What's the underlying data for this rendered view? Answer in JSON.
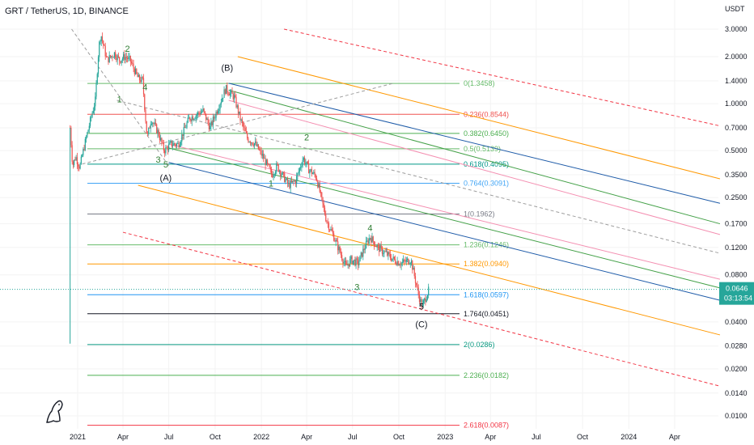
{
  "header": {
    "symbol": "GRT / TetherUS, 1D, BINANCE"
  },
  "chart_data": {
    "type": "candlestick",
    "title": "GRT / TetherUS, 1D, BINANCE",
    "yscale": "log",
    "ylabel": "USDT",
    "y_ticks": [
      "3.0000",
      "2.0000",
      "1.4000",
      "1.0000",
      "0.7000",
      "0.5000",
      "0.3500",
      "0.2500",
      "0.1700",
      "0.1200",
      "0.0800",
      "0.0400",
      "0.0280",
      "0.0200",
      "0.0140",
      "0.0100"
    ],
    "x_ticks": [
      "2021",
      "Apr",
      "Jul",
      "Oct",
      "2022",
      "Apr",
      "Jul",
      "Oct",
      "2023",
      "Apr",
      "Jul",
      "Oct",
      "2024",
      "Apr"
    ],
    "current_price": {
      "value": "0.0646",
      "countdown": "03:13:54",
      "color": "#26a69a"
    },
    "price_path": [
      [
        "2020-12-17",
        0.7
      ],
      [
        "2020-12-22",
        0.4
      ],
      [
        "2020-12-28",
        0.46
      ],
      [
        "2021-01-05",
        0.39
      ],
      [
        "2021-01-15",
        0.55
      ],
      [
        "2021-01-25",
        0.75
      ],
      [
        "2021-02-05",
        1.05
      ],
      [
        "2021-02-12",
        2.3
      ],
      [
        "2021-02-16",
        2.8
      ],
      [
        "2021-02-28",
        1.9
      ],
      [
        "2021-03-15",
        2.1
      ],
      [
        "2021-03-25",
        1.9
      ],
      [
        "2021-04-05",
        2.0
      ],
      [
        "2021-04-15",
        1.9
      ],
      [
        "2021-05-01",
        1.45
      ],
      [
        "2021-05-10",
        1.4
      ],
      [
        "2021-05-19",
        0.6
      ],
      [
        "2021-05-27",
        0.8
      ],
      [
        "2021-06-10",
        0.65
      ],
      [
        "2021-06-22",
        0.5
      ],
      [
        "2021-07-05",
        0.55
      ],
      [
        "2021-07-20",
        0.55
      ],
      [
        "2021-08-10",
        0.8
      ],
      [
        "2021-08-25",
        0.85
      ],
      [
        "2021-09-07",
        0.9
      ],
      [
        "2021-09-21",
        0.7
      ],
      [
        "2021-10-10",
        1.0
      ],
      [
        "2021-10-22",
        1.25
      ],
      [
        "2021-11-08",
        1.1
      ],
      [
        "2021-11-20",
        0.8
      ],
      [
        "2021-12-04",
        0.6
      ],
      [
        "2021-12-20",
        0.55
      ],
      [
        "2022-01-05",
        0.45
      ],
      [
        "2022-01-22",
        0.35
      ],
      [
        "2022-02-01",
        0.4
      ],
      [
        "2022-02-24",
        0.3
      ],
      [
        "2022-03-10",
        0.32
      ],
      [
        "2022-03-25",
        0.45
      ],
      [
        "2022-04-05",
        0.38
      ],
      [
        "2022-04-20",
        0.34
      ],
      [
        "2022-05-10",
        0.18
      ],
      [
        "2022-05-25",
        0.14
      ],
      [
        "2022-06-18",
        0.09
      ],
      [
        "2022-06-28",
        0.1
      ],
      [
        "2022-07-12",
        0.095
      ],
      [
        "2022-07-25",
        0.12
      ],
      [
        "2022-08-05",
        0.14
      ],
      [
        "2022-08-20",
        0.12
      ],
      [
        "2022-09-05",
        0.11
      ],
      [
        "2022-09-21",
        0.1
      ],
      [
        "2022-10-05",
        0.095
      ],
      [
        "2022-10-25",
        0.1
      ],
      [
        "2022-11-09",
        0.06
      ],
      [
        "2022-11-16",
        0.05
      ],
      [
        "2022-11-22",
        0.056
      ],
      [
        "2022-11-30",
        0.0646
      ]
    ],
    "fib_levels": [
      {
        "label": "0(1.3458)",
        "value": 1.3458,
        "color": "#66bb6a"
      },
      {
        "label": "0.236(0.8544)",
        "value": 0.8544,
        "color": "#ef5350"
      },
      {
        "label": "0.382(0.6450)",
        "value": 0.645,
        "color": "#4caf50"
      },
      {
        "label": "0.5(0.5139)",
        "value": 0.5139,
        "color": "#66bb6a"
      },
      {
        "label": "0.618(0.4095)",
        "value": 0.4095,
        "color": "#009688"
      },
      {
        "label": "0.764(0.3091)",
        "value": 0.3091,
        "color": "#42a5f5"
      },
      {
        "label": "1(0.1962)",
        "value": 0.1962,
        "color": "#787b86"
      },
      {
        "label": "1.236(0.1246)",
        "value": 0.1246,
        "color": "#66bb6a"
      },
      {
        "label": "1.382(0.0940)",
        "value": 0.094,
        "color": "#ff9800"
      },
      {
        "label": "1.618(0.0597)",
        "value": 0.0597,
        "color": "#2196f3"
      },
      {
        "label": "1.764(0.0451)",
        "value": 0.0451,
        "color": "#131722"
      },
      {
        "label": "2(0.0286)",
        "value": 0.0286,
        "color": "#089981"
      },
      {
        "label": "2.236(0.0182)",
        "value": 0.0182,
        "color": "#4caf50"
      },
      {
        "label": "2.618(0.0087)",
        "value": 0.0087,
        "color": "#f23645"
      }
    ],
    "wave_labels": [
      {
        "text": "2",
        "date": "2021-04-10",
        "price": 2.15,
        "color": "#2e7d32"
      },
      {
        "text": "1",
        "date": "2021-03-25",
        "price": 1.02,
        "color": "#2e7d32"
      },
      {
        "text": "4",
        "date": "2021-05-15",
        "price": 1.22,
        "color": "#2e7d32"
      },
      {
        "text": "3",
        "date": "2021-06-10",
        "price": 0.42,
        "color": "#2e7d32"
      },
      {
        "text": "5",
        "date": "2021-06-25",
        "price": 0.39,
        "color": "#2e7d32"
      },
      {
        "text": "(A)",
        "date": "2021-06-25",
        "price": 0.32,
        "color": "#131722"
      },
      {
        "text": "(B)",
        "date": "2021-10-25",
        "price": 1.62,
        "color": "#131722"
      },
      {
        "text": "1",
        "date": "2022-01-20",
        "price": 0.295,
        "color": "#2e7d32"
      },
      {
        "text": "2",
        "date": "2022-04-01",
        "price": 0.58,
        "color": "#2e7d32"
      },
      {
        "text": "4",
        "date": "2022-08-05",
        "price": 0.153,
        "color": "#2e7d32"
      },
      {
        "text": "3",
        "date": "2022-07-10",
        "price": 0.064,
        "color": "#2e7d32"
      },
      {
        "text": "5",
        "date": "2022-11-15",
        "price": 0.048,
        "color": "#131722"
      },
      {
        "text": "(C)",
        "date": "2022-11-15",
        "price": 0.037,
        "color": "#131722"
      }
    ],
    "channel_lines": [
      {
        "color": "#f23645",
        "dash": true,
        "from": [
          "2022-02-15",
          3.0
        ],
        "to": [
          "2024-06-30",
          0.72
        ]
      },
      {
        "color": "#ff9800",
        "dash": false,
        "from": [
          "2021-11-15",
          2.0
        ],
        "to": [
          "2024-06-30",
          0.33
        ]
      },
      {
        "color": "#1e5ba8",
        "dash": false,
        "from": [
          "2021-10-28",
          1.35
        ],
        "to": [
          "2024-06-30",
          0.23
        ]
      },
      {
        "color": "#43a047",
        "dash": false,
        "from": [
          "2021-10-28",
          1.22
        ],
        "to": [
          "2024-06-30",
          0.17
        ]
      },
      {
        "color": "#f48fb1",
        "dash": false,
        "from": [
          "2021-10-28",
          1.05
        ],
        "to": [
          "2024-06-30",
          0.145
        ]
      },
      {
        "color": "#9e9e9e",
        "dash": true,
        "from": [
          "2021-03-20",
          1.05
        ],
        "to": [
          "2024-06-30",
          0.11
        ]
      },
      {
        "color": "#f48fb1",
        "dash": false,
        "from": [
          "2021-07-01",
          0.55
        ],
        "to": [
          "2024-06-30",
          0.075
        ]
      },
      {
        "color": "#43a047",
        "dash": false,
        "from": [
          "2021-07-01",
          0.52
        ],
        "to": [
          "2024-06-30",
          0.066
        ]
      },
      {
        "color": "#1e5ba8",
        "dash": false,
        "from": [
          "2021-07-01",
          0.42
        ],
        "to": [
          "2024-06-30",
          0.055
        ]
      },
      {
        "color": "#ff9800",
        "dash": false,
        "from": [
          "2021-05-01",
          0.3
        ],
        "to": [
          "2024-06-30",
          0.033
        ]
      },
      {
        "color": "#f23645",
        "dash": true,
        "from": [
          "2021-04-01",
          0.15
        ],
        "to": [
          "2024-06-30",
          0.0155
        ]
      },
      {
        "color": "#9e9e9e",
        "dash": true,
        "from": [
          "2020-12-20",
          3.0
        ],
        "to": [
          "2021-07-01",
          0.4
        ]
      },
      {
        "color": "#9e9e9e",
        "dash": true,
        "from": [
          "2021-01-10",
          0.41
        ],
        "to": [
          "2022-09-20",
          1.35
        ]
      }
    ]
  }
}
